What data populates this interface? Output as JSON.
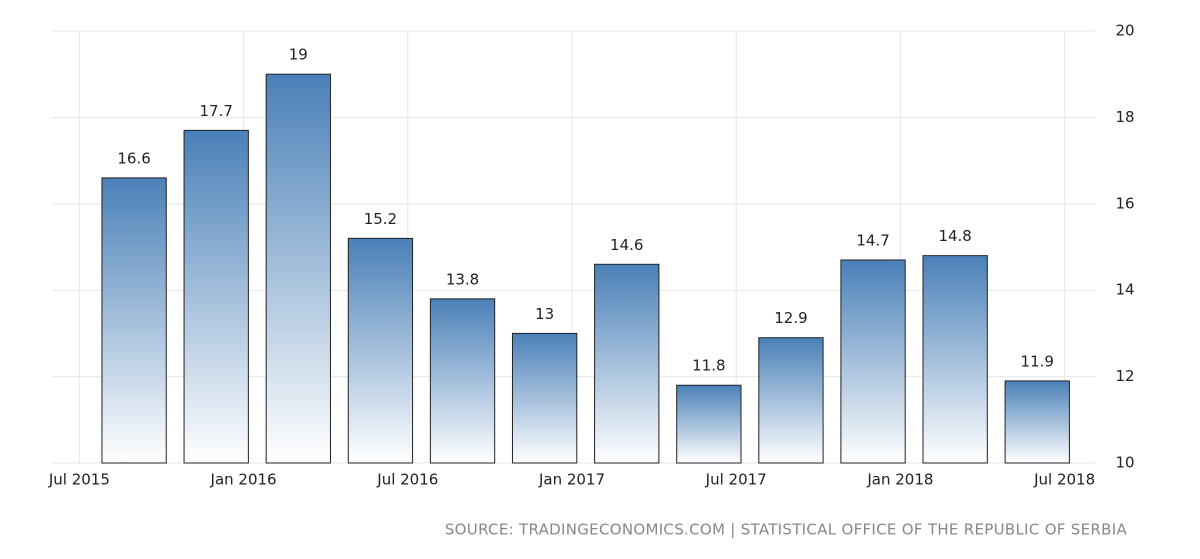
{
  "chart_data": {
    "type": "bar",
    "x": [
      "2015-09",
      "2015-12",
      "2016-03",
      "2016-06",
      "2016-09",
      "2016-12",
      "2017-03",
      "2017-06",
      "2017-09",
      "2017-12",
      "2018-03",
      "2018-06"
    ],
    "values": [
      16.6,
      17.7,
      19,
      15.2,
      13.8,
      13,
      14.6,
      11.8,
      12.9,
      14.7,
      14.8,
      11.9
    ],
    "color": "#4a80b8",
    "xlim": [
      "2015-06",
      "2018-08"
    ],
    "xticks": [
      {
        "value": "2015-07",
        "label": "Jul 2015"
      },
      {
        "value": "2016-01",
        "label": "Jan 2016"
      },
      {
        "value": "2016-07",
        "label": "Jul 2016"
      },
      {
        "value": "2017-01",
        "label": "Jan 2017"
      },
      {
        "value": "2017-07",
        "label": "Jul 2017"
      },
      {
        "value": "2018-01",
        "label": "Jan 2018"
      },
      {
        "value": "2018-07",
        "label": "Jul 2018"
      }
    ],
    "ylim": [
      10,
      20
    ],
    "yticks": [
      10,
      12,
      14,
      16,
      18,
      20
    ],
    "grid": true,
    "source": "SOURCE: TRADINGECONOMICS.COM | STATISTICAL OFFICE OF THE REPUBLIC OF SERBIA"
  }
}
